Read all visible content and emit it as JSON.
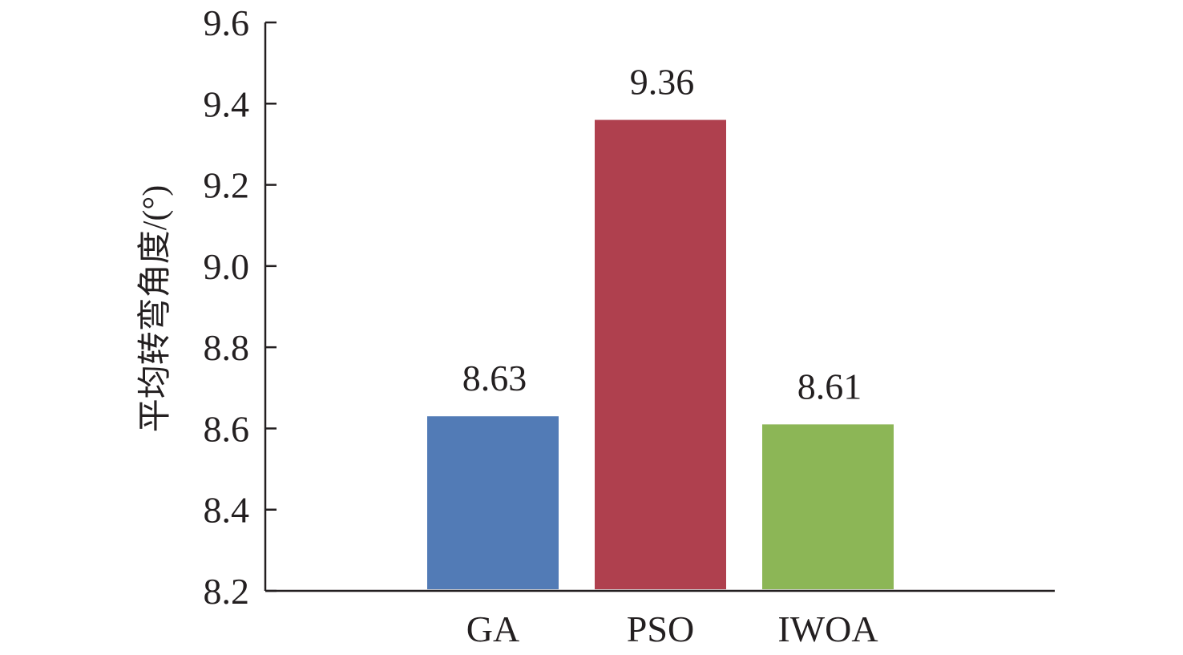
{
  "chart_data": {
    "type": "bar",
    "title": "",
    "xlabel": "",
    "ylabel": "平均转弯角度/(°)",
    "categories": [
      "GA",
      "PSO",
      "IWOA"
    ],
    "values": [
      8.63,
      9.36,
      8.61
    ],
    "data_labels": [
      "8.63",
      "9.36",
      "8.61"
    ],
    "colors": [
      "#527bb6",
      "#af404e",
      "#8cb656"
    ],
    "ylim": [
      8.2,
      9.6
    ],
    "yticks": [
      8.2,
      8.4,
      8.6,
      8.8,
      9.0,
      9.2,
      9.4,
      9.6
    ],
    "ytick_labels": [
      "8.2",
      "8.4",
      "8.6",
      "8.8",
      "9.0",
      "9.2",
      "9.4",
      "9.6"
    ],
    "grid": false,
    "legend": "none"
  }
}
